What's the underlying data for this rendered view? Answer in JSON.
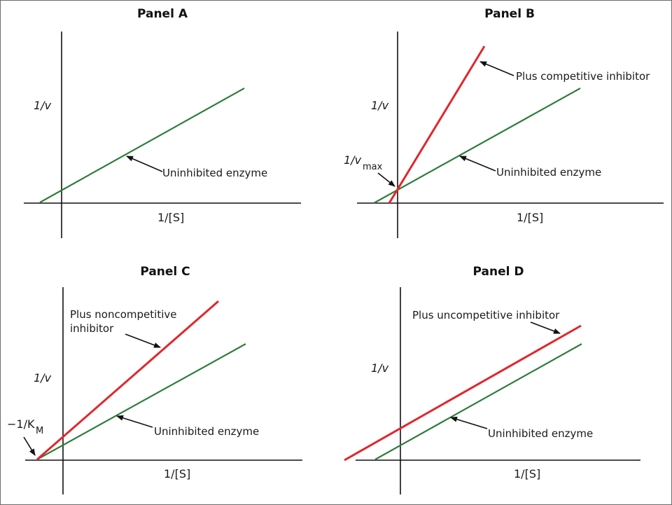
{
  "panels": {
    "a": {
      "title": "Panel A",
      "y_label": "1/v",
      "x_label": "1/[S]",
      "green_label": "Uninhibited enzyme"
    },
    "b": {
      "title": "Panel B",
      "y_label": "1/v",
      "x_label": "1/[S]",
      "red_label": "Plus competitive inhibitor",
      "green_label": "Uninhibited enzyme",
      "intercept_label_main": "1/v",
      "intercept_label_sub": "max"
    },
    "c": {
      "title": "Panel C",
      "y_label": "1/v",
      "x_label": "1/[S]",
      "red_label_line1": "Plus noncompetitive",
      "red_label_line2": "inhibitor",
      "green_label": "Uninhibited enzyme",
      "intercept_label_main": "−1/K",
      "intercept_label_sub": "M"
    },
    "d": {
      "title": "Panel D",
      "y_label": "1/v",
      "x_label": "1/[S]",
      "red_label": "Plus uncompetitive inhibitor",
      "green_label": "Uninhibited enzyme"
    }
  },
  "colors": {
    "uninhibited": "#2e7d3a",
    "inhibited": "#e2262b"
  }
}
